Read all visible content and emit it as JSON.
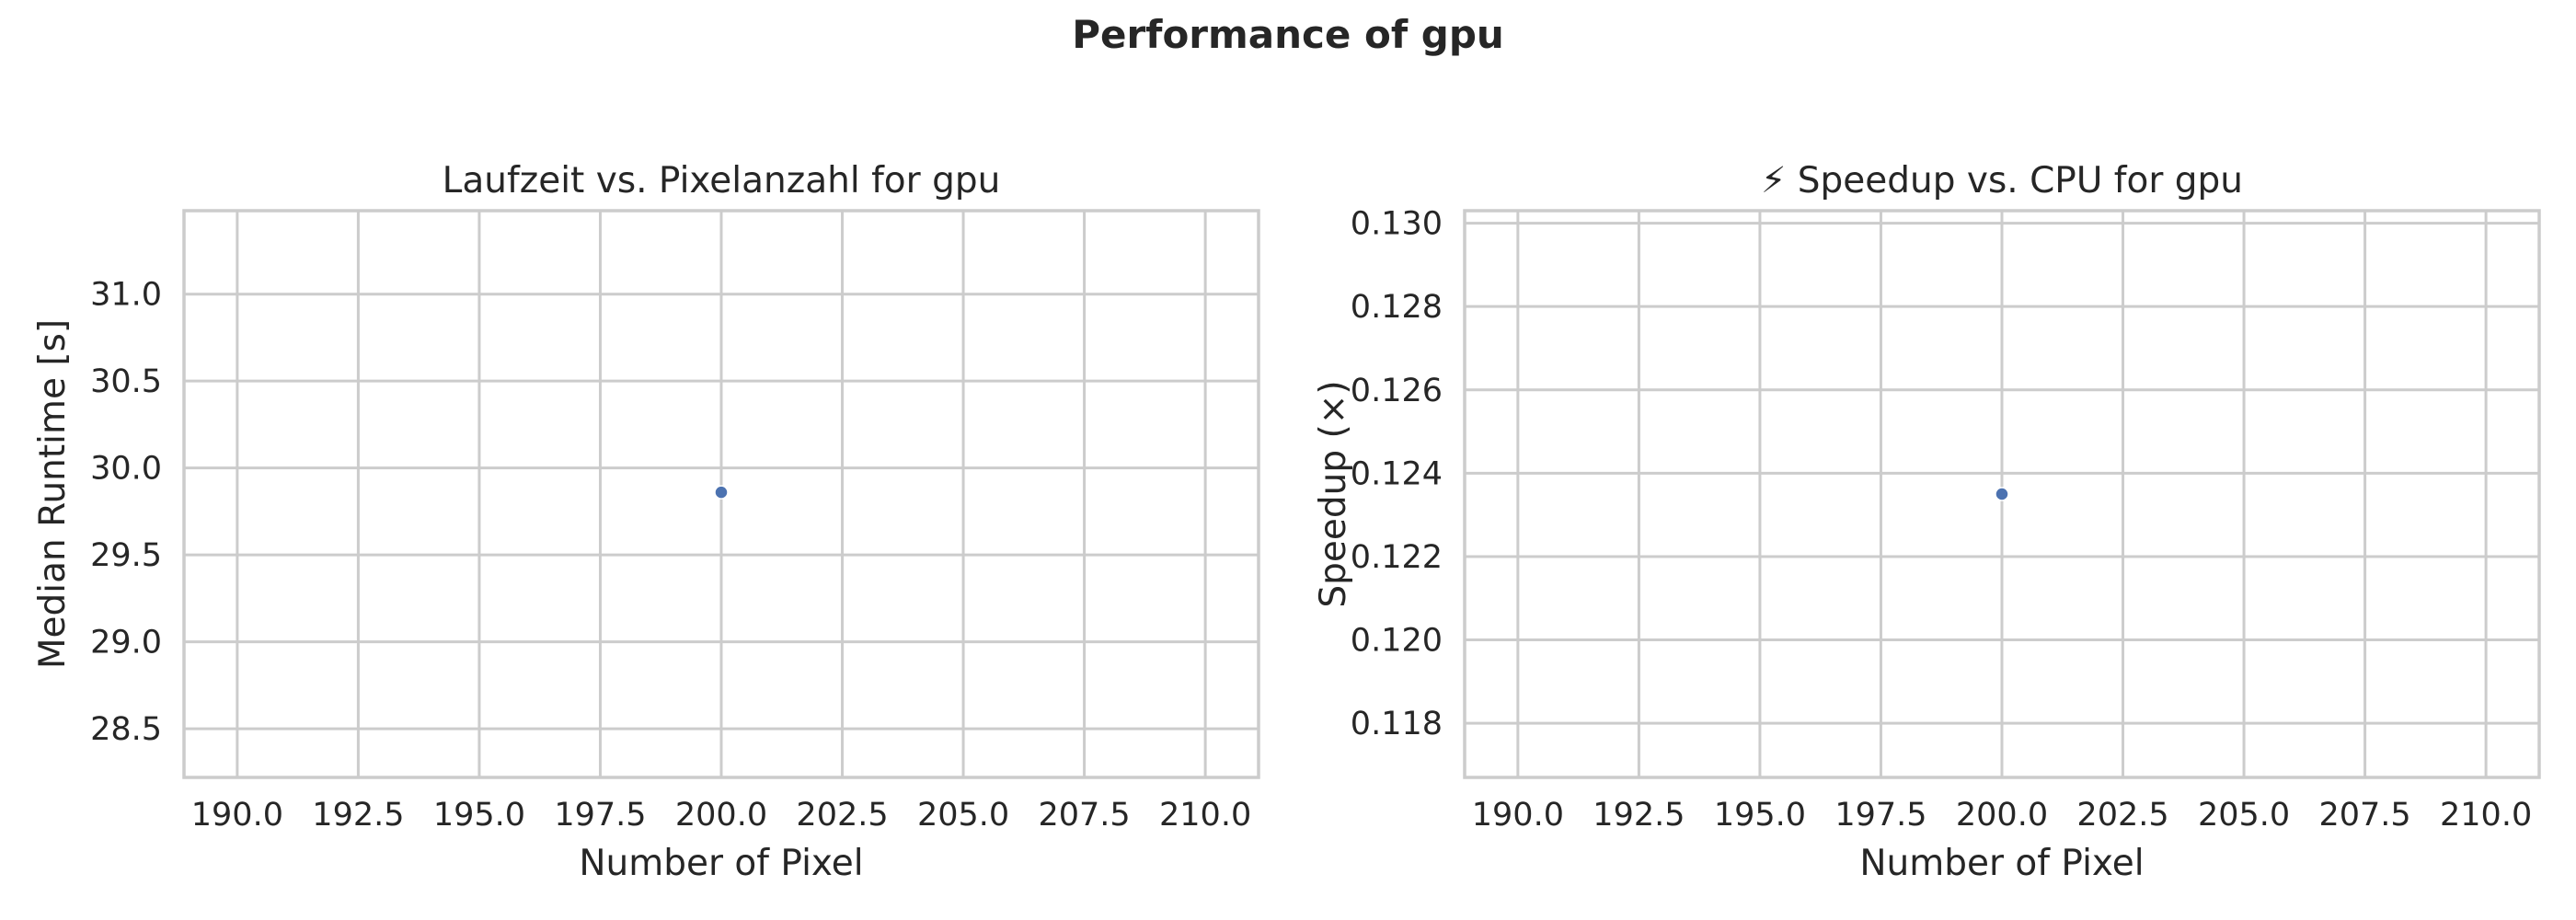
{
  "figure": {
    "suptitle": "Performance of gpu"
  },
  "chart_data": [
    {
      "type": "scatter",
      "title": "Laufzeit vs. Pixelanzahl for gpu",
      "xlabel": "Number of Pixel",
      "ylabel": "Median Runtime [s]",
      "xlim": [
        188.9,
        211.1
      ],
      "ylim": [
        28.22,
        31.48
      ],
      "xticks": [
        190.0,
        192.5,
        195.0,
        197.5,
        200.0,
        202.5,
        205.0,
        207.5,
        210.0
      ],
      "xtick_labels": [
        "190.0",
        "192.5",
        "195.0",
        "197.5",
        "200.0",
        "202.5",
        "205.0",
        "207.5",
        "210.0"
      ],
      "yticks": [
        28.5,
        29.0,
        29.5,
        30.0,
        30.5,
        31.0
      ],
      "ytick_labels": [
        "28.5",
        "29.0",
        "29.5",
        "30.0",
        "30.5",
        "31.0"
      ],
      "points": [
        {
          "x": 200,
          "y": 29.86
        }
      ],
      "marker_color": "#4c72b0",
      "grid": true
    },
    {
      "type": "scatter",
      "title": "⚡ Speedup vs. CPU for gpu",
      "xlabel": "Number of Pixel",
      "ylabel": "Speedup (×)",
      "xlim": [
        188.9,
        211.1
      ],
      "ylim": [
        0.1167,
        0.1303
      ],
      "xticks": [
        190.0,
        192.5,
        195.0,
        197.5,
        200.0,
        202.5,
        205.0,
        207.5,
        210.0
      ],
      "xtick_labels": [
        "190.0",
        "192.5",
        "195.0",
        "197.5",
        "200.0",
        "202.5",
        "205.0",
        "207.5",
        "210.0"
      ],
      "yticks": [
        0.118,
        0.12,
        0.122,
        0.124,
        0.126,
        0.128,
        0.13
      ],
      "ytick_labels": [
        "0.118",
        "0.120",
        "0.122",
        "0.124",
        "0.126",
        "0.128",
        "0.130"
      ],
      "points": [
        {
          "x": 200,
          "y": 0.1235
        }
      ],
      "marker_color": "#4c72b0",
      "grid": true
    }
  ]
}
